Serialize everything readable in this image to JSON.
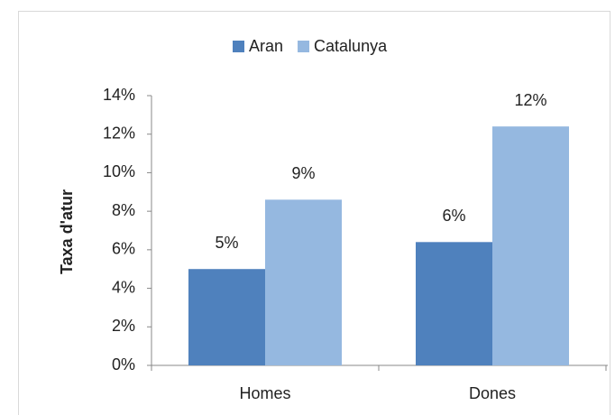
{
  "chart_data": {
    "type": "bar",
    "categories": [
      "Homes",
      "Dones"
    ],
    "series": [
      {
        "name": "Aran",
        "color": "#4f81bd",
        "values": [
          5.0,
          6.4
        ],
        "value_labels": [
          "5%",
          "6%"
        ]
      },
      {
        "name": "Catalunya",
        "color": "#95b8e0",
        "values": [
          8.6,
          12.4
        ],
        "value_labels": [
          "9%",
          "12%"
        ]
      }
    ],
    "y_label": "Taxa d'atur",
    "ylim": [
      0,
      14
    ],
    "yticks": [
      {
        "value": 0,
        "label": "0%"
      },
      {
        "value": 2,
        "label": "2%"
      },
      {
        "value": 4,
        "label": "4%"
      },
      {
        "value": 6,
        "label": "6%"
      },
      {
        "value": 8,
        "label": "8%"
      },
      {
        "value": 10,
        "label": "10%"
      },
      {
        "value": 12,
        "label": "12%"
      },
      {
        "value": 14,
        "label": "14%"
      }
    ],
    "legend": "top",
    "grid": false
  }
}
